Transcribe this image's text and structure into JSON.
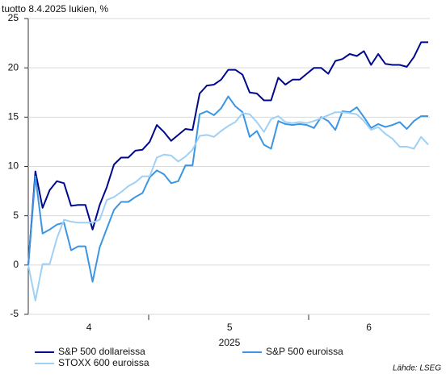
{
  "chart_data": {
    "type": "line",
    "title": "tuotto 8.4.2025 lukien, %",
    "xlabel": "2025",
    "source": "Lähde: LSEG",
    "xlim": [
      0,
      56
    ],
    "xticks": [
      {
        "value": 8.5,
        "label": "4"
      },
      {
        "value": 28.2,
        "label": "5"
      },
      {
        "value": 47.7,
        "label": "6"
      }
    ],
    "ylim": [
      -5,
      25
    ],
    "yticks": [
      -5,
      0,
      5,
      10,
      15,
      20,
      25
    ],
    "grid": true,
    "series": [
      {
        "name": "S&P 500 dollareissa",
        "color": "#00098c",
        "values": [
          0,
          9.5,
          5.8,
          7.6,
          8.5,
          8.3,
          6.0,
          6.1,
          6.1,
          3.6,
          6.1,
          7.9,
          10.2,
          10.9,
          10.9,
          11.6,
          11.7,
          12.5,
          14.2,
          13.5,
          12.6,
          13.2,
          13.8,
          13.7,
          17.4,
          18.2,
          18.3,
          18.8,
          19.8,
          19.8,
          19.3,
          17.5,
          17.4,
          16.7,
          16.7,
          19.0,
          18.3,
          18.8,
          18.8,
          19.4,
          20.0,
          20.0,
          19.4,
          20.7,
          20.9,
          21.4,
          21.2,
          21.7,
          20.3,
          21.4,
          20.4,
          20.3,
          20.3,
          20.1,
          21.1,
          22.6,
          22.6
        ]
      },
      {
        "name": "S&P 500 euroissa",
        "color": "#3b95e3",
        "values": [
          0,
          9.0,
          3.2,
          3.6,
          4.1,
          4.3,
          1.5,
          1.9,
          1.9,
          -1.7,
          1.8,
          3.7,
          5.6,
          6.4,
          6.4,
          6.9,
          7.3,
          8.9,
          9.6,
          9.2,
          8.3,
          8.5,
          10.1,
          10.1,
          15.3,
          15.6,
          15.2,
          15.9,
          17.1,
          16.1,
          15.5,
          13.0,
          13.6,
          12.2,
          11.8,
          14.6,
          14.3,
          14.2,
          14.3,
          14.2,
          13.9,
          15.0,
          14.6,
          13.7,
          15.6,
          15.5,
          16.0,
          15.0,
          13.9,
          14.3,
          14.0,
          14.2,
          14.5,
          13.8,
          14.6,
          15.1,
          15.1
        ]
      },
      {
        "name": "STOXX 600 euroissa",
        "color": "#9fd0f5",
        "values": [
          0,
          -3.6,
          0.1,
          0.1,
          2.7,
          4.6,
          4.4,
          4.3,
          4.3,
          4.3,
          4.6,
          6.6,
          6.9,
          7.4,
          8.0,
          8.4,
          9.0,
          9.0,
          10.9,
          11.2,
          11.1,
          10.5,
          11.0,
          11.7,
          13.1,
          13.2,
          13.0,
          13.6,
          14.1,
          14.5,
          15.4,
          15.3,
          14.5,
          13.5,
          14.8,
          15.1,
          14.5,
          14.4,
          14.5,
          14.4,
          14.6,
          14.9,
          15.2,
          15.5,
          15.5,
          15.4,
          15.3,
          14.6,
          13.7,
          14.0,
          13.3,
          12.8,
          12.0,
          12.0,
          11.8,
          13.0,
          12.2
        ]
      }
    ]
  }
}
